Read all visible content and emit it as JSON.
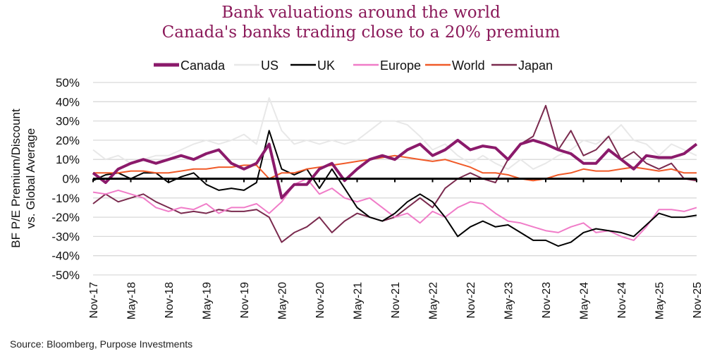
{
  "chart_data": {
    "type": "line",
    "title": "Bank valuations around the world",
    "subtitle": "Canada's banks trading close to a 20% premium",
    "ylabel": "BF P/E Premium/Discount vs. Global Average",
    "ylabel_lines": [
      "BF P/E Premium/Discount",
      "vs. Global Average"
    ],
    "xlabel": "",
    "ylim": [
      -50,
      50
    ],
    "yticks": [
      "50%",
      "40%",
      "30%",
      "20%",
      "10%",
      "0%",
      "-10%",
      "-20%",
      "-30%",
      "-40%",
      "-50%"
    ],
    "xticks": [
      "Nov-17",
      "May-18",
      "Nov-18",
      "May-19",
      "Nov-19",
      "May-20",
      "Nov-20",
      "May-21",
      "Nov-21",
      "May-22",
      "Nov-22",
      "May-23",
      "Nov-23",
      "May-24",
      "Nov-24",
      "May-25",
      "Nov-25"
    ],
    "grid": true,
    "legend_position": "top",
    "x": [
      "Nov-17",
      "Jan-18",
      "Mar-18",
      "May-18",
      "Jul-18",
      "Sep-18",
      "Nov-18",
      "Jan-19",
      "Mar-19",
      "May-19",
      "Jul-19",
      "Sep-19",
      "Nov-19",
      "Jan-20",
      "Mar-20",
      "May-20",
      "Jul-20",
      "Sep-20",
      "Nov-20",
      "Jan-21",
      "Mar-21",
      "May-21",
      "Jul-21",
      "Sep-21",
      "Nov-21",
      "Jan-22",
      "Mar-22",
      "May-22",
      "Jul-22",
      "Sep-22",
      "Nov-22",
      "Jan-23",
      "Mar-23",
      "May-23",
      "Jul-23",
      "Sep-23",
      "Nov-23",
      "Jan-24",
      "Mar-24",
      "May-24",
      "Jul-24",
      "Sep-24",
      "Nov-24",
      "Jan-25",
      "Mar-25",
      "May-25",
      "Jul-25",
      "Sep-25",
      "Nov-25"
    ],
    "series": [
      {
        "name": "Canada",
        "color": "#8b1a6b",
        "values": [
          3,
          -2,
          5,
          8,
          10,
          8,
          10,
          12,
          10,
          13,
          15,
          8,
          5,
          8,
          18,
          -10,
          -3,
          -3,
          5,
          8,
          -1,
          5,
          10,
          12,
          10,
          15,
          18,
          12,
          15,
          20,
          15,
          17,
          16,
          10,
          18,
          20,
          18,
          15,
          13,
          8,
          8,
          15,
          10,
          5,
          12,
          11,
          11,
          13,
          18
        ]
      },
      {
        "name": "US",
        "color": "#e8e8e8",
        "values": [
          15,
          10,
          12,
          8,
          10,
          12,
          12,
          15,
          18,
          20,
          18,
          20,
          23,
          18,
          42,
          25,
          18,
          20,
          18,
          20,
          18,
          20,
          25,
          30,
          30,
          28,
          22,
          15,
          18,
          12,
          8,
          12,
          8,
          5,
          10,
          5,
          8,
          12,
          15,
          20,
          18,
          22,
          28,
          20,
          18,
          12,
          18,
          15,
          12
        ]
      },
      {
        "name": "UK",
        "color": "#000000",
        "values": [
          -1,
          2,
          3,
          0,
          3,
          3,
          -2,
          1,
          3,
          -3,
          -6,
          -5,
          -6,
          -2,
          25,
          5,
          2,
          5,
          -5,
          5,
          -5,
          -15,
          -20,
          -22,
          -18,
          -12,
          -8,
          -12,
          -20,
          -30,
          -25,
          -22,
          -25,
          -24,
          -28,
          -32,
          -32,
          -35,
          -33,
          -28,
          -26,
          -27,
          -28,
          -30,
          -24,
          -18,
          -20,
          -20,
          -19
        ]
      },
      {
        "name": "Europe",
        "color": "#f07cc8",
        "values": [
          -7,
          -8,
          -6,
          -8,
          -10,
          -15,
          -17,
          -15,
          -16,
          -13,
          -18,
          -15,
          -15,
          -13,
          -18,
          -12,
          -3,
          0,
          -8,
          -5,
          -10,
          -12,
          -10,
          -15,
          -20,
          -18,
          -23,
          -17,
          -20,
          -15,
          -12,
          -13,
          -18,
          -22,
          -23,
          -25,
          -27,
          -28,
          -25,
          -23,
          -28,
          -27,
          -30,
          -32,
          -25,
          -16,
          -16,
          -17,
          -15
        ]
      },
      {
        "name": "World",
        "color": "#f05a28",
        "values": [
          3,
          3,
          3,
          4,
          4,
          3,
          3,
          4,
          5,
          5,
          6,
          6,
          7,
          7,
          0,
          3,
          3,
          5,
          6,
          7,
          8,
          9,
          10,
          11,
          12,
          11,
          10,
          9,
          10,
          8,
          6,
          3,
          3,
          2,
          0,
          -1,
          0,
          2,
          3,
          5,
          4,
          4,
          5,
          6,
          5,
          4,
          5,
          3,
          3
        ]
      },
      {
        "name": "Japan",
        "color": "#7a2a4e",
        "values": [
          -13,
          -8,
          -12,
          -10,
          -8,
          -12,
          -15,
          -18,
          -17,
          -18,
          -16,
          -17,
          -17,
          -16,
          -20,
          -33,
          -28,
          -25,
          -20,
          -28,
          -22,
          -18,
          -20,
          -22,
          -20,
          -15,
          -10,
          -15,
          -5,
          0,
          3,
          0,
          -2,
          10,
          18,
          22,
          38,
          15,
          25,
          12,
          15,
          22,
          10,
          14,
          8,
          5,
          8,
          0,
          -1
        ]
      }
    ]
  },
  "source": "Source: Bloomberg, Purpose Investments"
}
